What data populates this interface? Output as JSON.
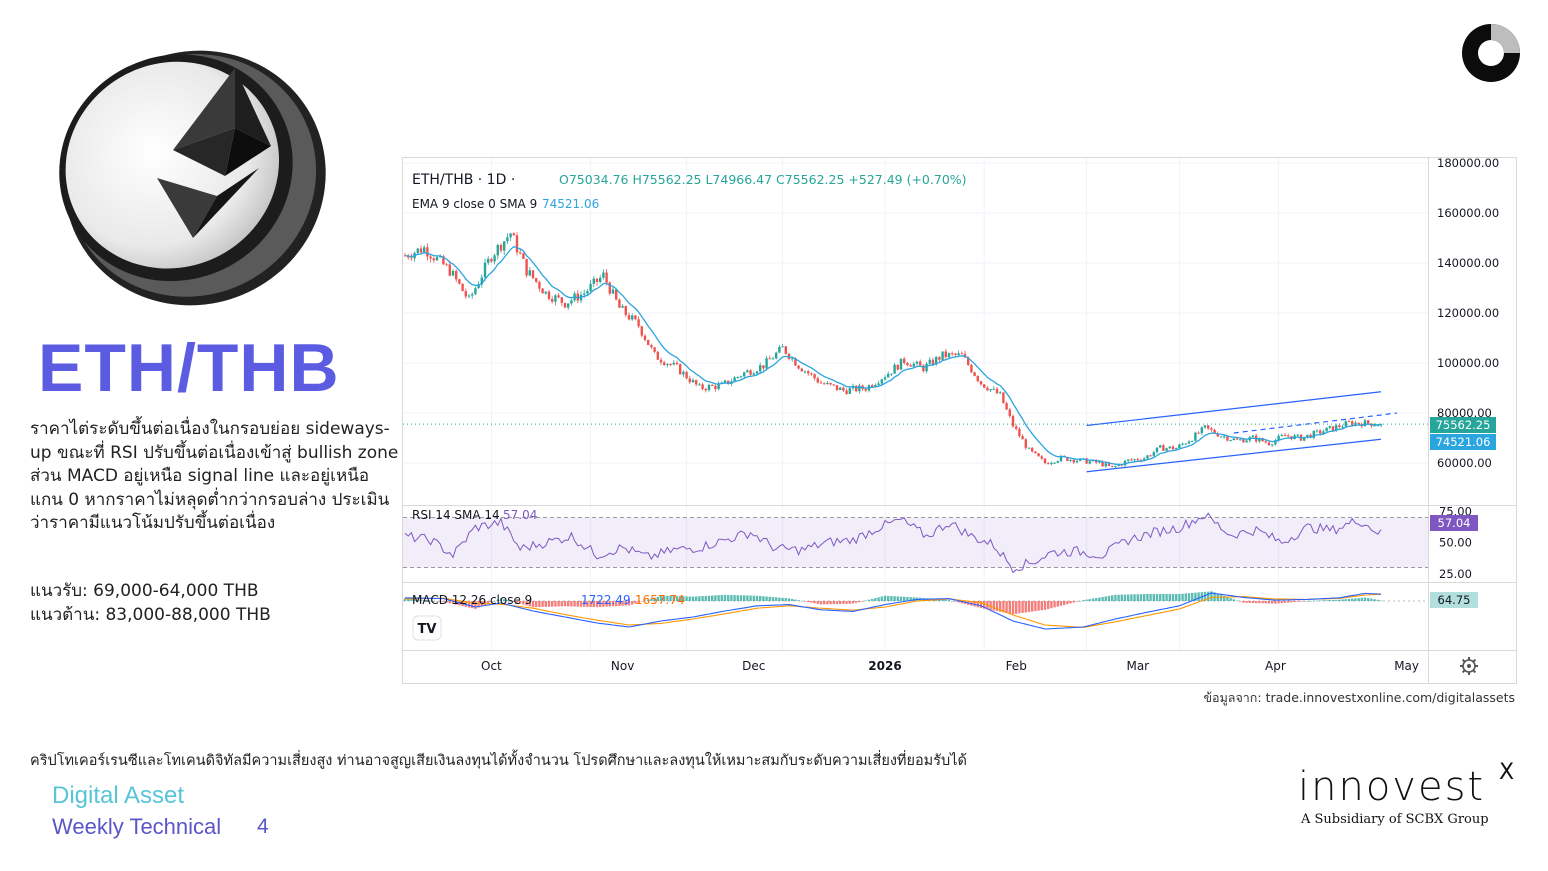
{
  "title": "ETH/THB",
  "analysis_text": "ราคาไต่ระดับขึ้นต่อเนื่องในกรอบย่อย sideways-up ขณะที่ RSI ปรับขึ้นต่อเนื่องเข้าสู่ bullish zone ส่วน MACD อยู่เหนือ signal line และอยู่เหนือแกน 0 หากราคาไม่หลุดต่ำกว่ากรอบล่าง ประเมินว่าราคามีแนวโน้มปรับขึ้นต่อเนื่อง",
  "support": "แนวรับ: 69,000-64,000 THB",
  "resistance": "แนวต้าน: 83,000-88,000 THB",
  "source": "ข้อมูลจาก: trade.innovestxonline.com/digitalassets",
  "disclaimer": "คริปโทเคอร์เรนซีและโทเคนดิจิทัลมีความเสี่ยงสูง ท่านอาจสูญเสียเงินลงทุนได้ทั้งจำนวน โปรดศึกษาและลงทุนให้เหมาะสมกับระดับความเสี่ยงที่ยอมรับได้",
  "footer": {
    "line1": "Digital Asset",
    "line2": "Weekly Technical",
    "page": "4"
  },
  "brand": {
    "name": "innovest",
    "x": "X",
    "subtitle": "A Subsidiary of SCBX Group"
  },
  "colors": {
    "accent": "#5b5ce2",
    "up": "#26a69a",
    "down": "#ef5350",
    "ema": "#2aa5e0",
    "rsi": "#7e57c2",
    "channel": "#2962ff"
  },
  "chart_data": {
    "type": "candlestick",
    "symbol": "ETH/THB · 1D · ",
    "ohlc_label": "O75034.76 H75562.25 L74966.47 C75562.25 +527.49 (+0.70%)",
    "ema_label": "EMA 9 close 0 SMA 9",
    "ema_value": "74521.06",
    "price_ticks": [
      "180000.00",
      "160000.00",
      "140000.00",
      "120000.00",
      "100000.00",
      "80000.00",
      "60000.00"
    ],
    "price_tick_values": [
      180000,
      160000,
      140000,
      120000,
      100000,
      80000,
      60000
    ],
    "last_price_tag": "75562.25",
    "ema_tag": "74521.06",
    "x_labels": [
      "Oct",
      "Nov",
      "Dec",
      "2026",
      "Feb",
      "Mar",
      "Apr",
      "May"
    ],
    "anchors": [
      [
        0,
        143000
      ],
      [
        6,
        146000
      ],
      [
        14,
        137000
      ],
      [
        20,
        125000
      ],
      [
        27,
        143000
      ],
      [
        33,
        152000
      ],
      [
        38,
        137000
      ],
      [
        44,
        128000
      ],
      [
        50,
        124000
      ],
      [
        56,
        128000
      ],
      [
        62,
        135000
      ],
      [
        67,
        122000
      ],
      [
        73,
        115000
      ],
      [
        78,
        103000
      ],
      [
        85,
        98000
      ],
      [
        92,
        90000
      ],
      [
        99,
        91000
      ],
      [
        106,
        96000
      ],
      [
        112,
        99000
      ],
      [
        118,
        106000
      ],
      [
        123,
        99000
      ],
      [
        130,
        92000
      ],
      [
        137,
        89000
      ],
      [
        144,
        90000
      ],
      [
        151,
        96000
      ],
      [
        156,
        101000
      ],
      [
        162,
        98000
      ],
      [
        168,
        103000
      ],
      [
        174,
        103000
      ],
      [
        180,
        92000
      ],
      [
        186,
        87000
      ],
      [
        190,
        75000
      ],
      [
        195,
        65000
      ],
      [
        200,
        60000
      ],
      [
        205,
        62000
      ],
      [
        211,
        61000
      ],
      [
        217,
        60000
      ],
      [
        221,
        58000
      ],
      [
        226,
        61000
      ],
      [
        231,
        62000
      ],
      [
        236,
        66000
      ],
      [
        241,
        66000
      ],
      [
        246,
        70000
      ],
      [
        250,
        74000
      ],
      [
        255,
        71000
      ],
      [
        260,
        69000
      ],
      [
        265,
        70000
      ],
      [
        270,
        68000
      ],
      [
        275,
        71000
      ],
      [
        280,
        70000
      ],
      [
        285,
        72000
      ],
      [
        290,
        74000
      ],
      [
        295,
        76000
      ],
      [
        300,
        76000
      ],
      [
        305,
        75562
      ]
    ],
    "channel": {
      "upper": [
        [
          213,
          75000
        ],
        [
          305,
          88500
        ]
      ],
      "lower": [
        [
          213,
          56500
        ],
        [
          305,
          69500
        ]
      ],
      "mid": [
        [
          259,
          72000
        ],
        [
          310,
          80000
        ]
      ]
    },
    "rsi": {
      "label": "RSI 14 SMA 14",
      "value": "57.04",
      "ticks": [
        "75.00",
        "50.00",
        "25.00"
      ],
      "tick_values": [
        75,
        50,
        25
      ],
      "anchors": [
        [
          0,
          55
        ],
        [
          8,
          52
        ],
        [
          15,
          40
        ],
        [
          22,
          62
        ],
        [
          30,
          66
        ],
        [
          36,
          45
        ],
        [
          44,
          50
        ],
        [
          52,
          55
        ],
        [
          60,
          40
        ],
        [
          68,
          46
        ],
        [
          76,
          38
        ],
        [
          84,
          44
        ],
        [
          92,
          46
        ],
        [
          100,
          52
        ],
        [
          108,
          58
        ],
        [
          116,
          45
        ],
        [
          124,
          44
        ],
        [
          132,
          50
        ],
        [
          140,
          52
        ],
        [
          148,
          62
        ],
        [
          155,
          68
        ],
        [
          163,
          55
        ],
        [
          170,
          66
        ],
        [
          177,
          55
        ],
        [
          184,
          48
        ],
        [
          190,
          30
        ],
        [
          196,
          34
        ],
        [
          202,
          42
        ],
        [
          210,
          43
        ],
        [
          218,
          40
        ],
        [
          226,
          52
        ],
        [
          234,
          58
        ],
        [
          242,
          62
        ],
        [
          250,
          72
        ],
        [
          258,
          56
        ],
        [
          266,
          60
        ],
        [
          274,
          50
        ],
        [
          282,
          62
        ],
        [
          290,
          60
        ],
        [
          298,
          68
        ],
        [
          305,
          57
        ]
      ]
    },
    "macd": {
      "label": "MACD 12 26 close 9",
      "macd_value": "1722.49",
      "signal_value": "1657.74",
      "histogram_tag": "64.75",
      "line_anchors": [
        [
          0,
          800
        ],
        [
          12,
          600
        ],
        [
          22,
          -1500
        ],
        [
          30,
          -500
        ],
        [
          40,
          -2500
        ],
        [
          50,
          -4000
        ],
        [
          60,
          -5500
        ],
        [
          70,
          -6500
        ],
        [
          80,
          -5000
        ],
        [
          90,
          -4000
        ],
        [
          100,
          -2500
        ],
        [
          110,
          -1200
        ],
        [
          120,
          -900
        ],
        [
          130,
          -2200
        ],
        [
          140,
          -2600
        ],
        [
          150,
          -900
        ],
        [
          160,
          400
        ],
        [
          170,
          600
        ],
        [
          180,
          -1200
        ],
        [
          190,
          -5000
        ],
        [
          200,
          -7000
        ],
        [
          212,
          -6500
        ],
        [
          222,
          -4500
        ],
        [
          232,
          -2800
        ],
        [
          242,
          -1200
        ],
        [
          252,
          2000
        ],
        [
          262,
          900
        ],
        [
          272,
          200
        ],
        [
          282,
          400
        ],
        [
          292,
          800
        ],
        [
          300,
          1900
        ],
        [
          305,
          1722
        ]
      ],
      "signal_anchors": [
        [
          0,
          500
        ],
        [
          12,
          700
        ],
        [
          22,
          -600
        ],
        [
          30,
          -800
        ],
        [
          40,
          -1800
        ],
        [
          50,
          -3400
        ],
        [
          60,
          -4800
        ],
        [
          70,
          -6000
        ],
        [
          80,
          -5600
        ],
        [
          90,
          -4500
        ],
        [
          100,
          -3200
        ],
        [
          110,
          -1800
        ],
        [
          120,
          -1200
        ],
        [
          130,
          -1800
        ],
        [
          140,
          -2300
        ],
        [
          150,
          -1500
        ],
        [
          160,
          0
        ],
        [
          170,
          500
        ],
        [
          180,
          -400
        ],
        [
          190,
          -3500
        ],
        [
          200,
          -6000
        ],
        [
          212,
          -6600
        ],
        [
          222,
          -5200
        ],
        [
          232,
          -3600
        ],
        [
          242,
          -2000
        ],
        [
          252,
          900
        ],
        [
          262,
          1100
        ],
        [
          272,
          500
        ],
        [
          282,
          400
        ],
        [
          292,
          650
        ],
        [
          300,
          1500
        ],
        [
          305,
          1657
        ]
      ]
    }
  }
}
